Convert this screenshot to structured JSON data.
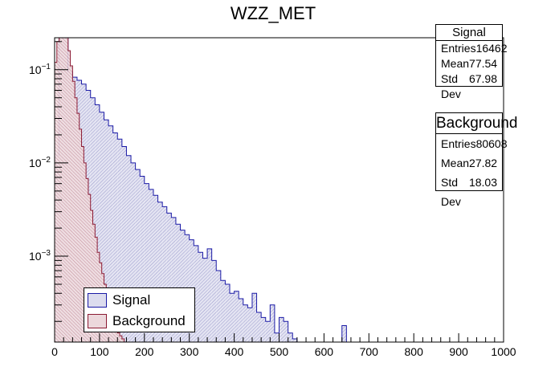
{
  "title": "WZZ_MET",
  "colors": {
    "signal_line": "#1a1aa6",
    "signal_fill": "#d8d8ee",
    "background_line": "#8b1a33",
    "background_fill": "#ebd5da"
  },
  "stats": {
    "signal": {
      "name": "Signal",
      "entries_label": "Entries",
      "entries": "16462",
      "mean_label": "Mean",
      "mean": "77.54",
      "std_label": "Std Dev",
      "std": "67.98"
    },
    "background": {
      "name": "Background",
      "entries_label": "Entries",
      "entries": "80608",
      "mean_label": "Mean",
      "mean": "27.82",
      "std_label": "Std Dev",
      "std": "18.03"
    }
  },
  "legend": {
    "signal": "Signal",
    "background": "Background"
  },
  "chart_data": {
    "type": "area",
    "title": "WZZ_MET",
    "xlabel": "",
    "ylabel": "",
    "xlim": [
      0,
      1000
    ],
    "ylim": [
      0.00012,
      0.22
    ],
    "y_scale": "log",
    "grid": false,
    "legend_position": "bottom-left",
    "x_ticks": [
      "0",
      "100",
      "200",
      "300",
      "400",
      "500",
      "600",
      "700",
      "800",
      "900",
      "1000"
    ],
    "y_ticks": [
      {
        "value": 0.1,
        "base": "10",
        "exp": "−1"
      },
      {
        "value": 0.01,
        "base": "10",
        "exp": "−2"
      },
      {
        "value": 0.001,
        "base": "10",
        "exp": "−3"
      }
    ],
    "series": [
      {
        "name": "Signal",
        "bin_edges": [
          0,
          10,
          20,
          30,
          40,
          50,
          60,
          70,
          80,
          90,
          100,
          110,
          120,
          130,
          140,
          150,
          160,
          170,
          180,
          190,
          200,
          210,
          220,
          230,
          240,
          250,
          260,
          270,
          280,
          290,
          300,
          310,
          320,
          330,
          340,
          350,
          360,
          370,
          380,
          390,
          400,
          410,
          420,
          430,
          440,
          450,
          460,
          470,
          480,
          490,
          500,
          510,
          520,
          530,
          540,
          560,
          640,
          650,
          660
        ],
        "values": [
          0.012,
          0.22,
          0.22,
          0.095,
          0.083,
          0.077,
          0.07,
          0.06,
          0.05,
          0.042,
          0.035,
          0.029,
          0.025,
          0.021,
          0.018,
          0.015,
          0.012,
          0.01,
          0.0085,
          0.0072,
          0.006,
          0.0052,
          0.0045,
          0.0038,
          0.0034,
          0.0029,
          0.0026,
          0.0022,
          0.0019,
          0.0017,
          0.0015,
          0.0013,
          0.0011,
          0.00095,
          0.0012,
          0.0009,
          0.0007,
          0.00055,
          0.0005,
          0.0004,
          0.00042,
          0.00035,
          0.0003,
          0.00028,
          0.0004,
          0.00025,
          0.00022,
          0.0002,
          0.0003,
          0.00015,
          0.00022,
          0.0002,
          0.00015,
          0.00013,
          0.0,
          0.0,
          0.00018,
          0.0
        ]
      },
      {
        "name": "Background",
        "bin_edges": [
          0,
          5,
          10,
          15,
          20,
          25,
          30,
          35,
          40,
          45,
          50,
          55,
          60,
          65,
          70,
          75,
          80,
          85,
          90,
          95,
          100,
          105,
          110,
          115,
          120,
          125,
          130,
          135,
          140,
          145,
          150,
          155,
          160,
          165,
          170
        ],
        "values": [
          0.12,
          0.2,
          0.22,
          0.22,
          0.22,
          0.22,
          0.16,
          0.11,
          0.075,
          0.05,
          0.034,
          0.023,
          0.015,
          0.01,
          0.0068,
          0.0046,
          0.0031,
          0.0022,
          0.0016,
          0.0011,
          0.00085,
          0.00065,
          0.0005,
          0.0004,
          0.0003,
          0.00025,
          0.0002,
          0.00017,
          0.00015,
          0.00014,
          0.00013,
          0.0,
          0.0,
          0.0
        ]
      }
    ]
  }
}
